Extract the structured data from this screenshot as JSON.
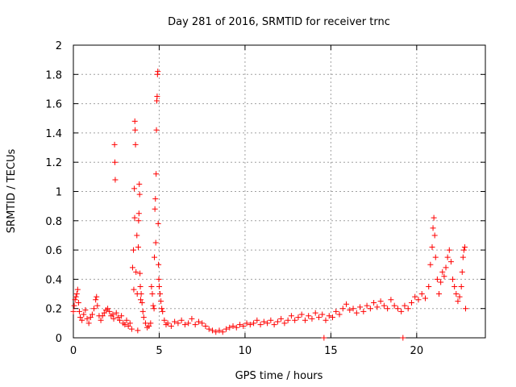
{
  "chart_data": {
    "type": "scatter",
    "title": "Day 281 of 2016, SRMTID for receiver trnc",
    "xlabel": "GPS time / hours",
    "ylabel": "SRMTID / TECUs",
    "xlim": [
      0,
      24
    ],
    "ylim": [
      0,
      2
    ],
    "x_ticks": [
      0,
      5,
      10,
      15,
      20
    ],
    "x_tick_labels": [
      "0",
      "5",
      "10",
      "15",
      "20"
    ],
    "y_ticks": [
      0,
      0.2,
      0.4,
      0.6,
      0.8,
      1,
      1.2,
      1.4,
      1.6,
      1.8,
      2
    ],
    "y_tick_labels": [
      "0",
      "0.2",
      "0.4",
      "0.6",
      "0.8",
      "1",
      "1.2",
      "1.4",
      "1.6",
      "1.8",
      "2"
    ],
    "grid": true,
    "marker": "+",
    "color": "#ff0000",
    "series": [
      {
        "name": "SRMTID",
        "points": [
          [
            0.0,
            0.18
          ],
          [
            0.05,
            0.22
          ],
          [
            0.1,
            0.26
          ],
          [
            0.15,
            0.28
          ],
          [
            0.2,
            0.3
          ],
          [
            0.25,
            0.33
          ],
          [
            0.3,
            0.24
          ],
          [
            0.35,
            0.18
          ],
          [
            0.4,
            0.14
          ],
          [
            0.5,
            0.12
          ],
          [
            0.6,
            0.16
          ],
          [
            0.7,
            0.19
          ],
          [
            0.8,
            0.13
          ],
          [
            0.9,
            0.1
          ],
          [
            1.0,
            0.14
          ],
          [
            1.1,
            0.16
          ],
          [
            1.2,
            0.2
          ],
          [
            1.3,
            0.26
          ],
          [
            1.35,
            0.28
          ],
          [
            1.4,
            0.22
          ],
          [
            1.5,
            0.15
          ],
          [
            1.6,
            0.12
          ],
          [
            1.7,
            0.15
          ],
          [
            1.8,
            0.17
          ],
          [
            1.9,
            0.19
          ],
          [
            2.0,
            0.2
          ],
          [
            2.1,
            0.18
          ],
          [
            2.2,
            0.15
          ],
          [
            2.3,
            0.16
          ],
          [
            2.35,
            0.13
          ],
          [
            2.4,
            1.32
          ],
          [
            2.42,
            1.2
          ],
          [
            2.44,
            1.08
          ],
          [
            2.5,
            0.17
          ],
          [
            2.6,
            0.14
          ],
          [
            2.7,
            0.12
          ],
          [
            2.8,
            0.15
          ],
          [
            2.9,
            0.1
          ],
          [
            3.0,
            0.09
          ],
          [
            3.1,
            0.12
          ],
          [
            3.2,
            0.08
          ],
          [
            3.3,
            0.1
          ],
          [
            3.4,
            0.06
          ],
          [
            3.45,
            0.48
          ],
          [
            3.5,
            0.6
          ],
          [
            3.52,
            0.33
          ],
          [
            3.55,
            1.02
          ],
          [
            3.57,
            0.82
          ],
          [
            3.58,
            1.48
          ],
          [
            3.6,
            1.42
          ],
          [
            3.62,
            1.32
          ],
          [
            3.65,
            0.45
          ],
          [
            3.7,
            0.7
          ],
          [
            3.72,
            0.3
          ],
          [
            3.75,
            0.05
          ],
          [
            3.78,
            0.62
          ],
          [
            3.8,
            0.8
          ],
          [
            3.82,
            0.85
          ],
          [
            3.84,
            1.05
          ],
          [
            3.86,
            0.98
          ],
          [
            3.88,
            0.44
          ],
          [
            3.9,
            0.35
          ],
          [
            3.92,
            0.26
          ],
          [
            3.95,
            0.3
          ],
          [
            4.0,
            0.24
          ],
          [
            4.05,
            0.18
          ],
          [
            4.1,
            0.14
          ],
          [
            4.2,
            0.1
          ],
          [
            4.3,
            0.07
          ],
          [
            4.4,
            0.08
          ],
          [
            4.5,
            0.1
          ],
          [
            4.55,
            0.35
          ],
          [
            4.6,
            0.3
          ],
          [
            4.65,
            0.22
          ],
          [
            4.7,
            0.2
          ],
          [
            4.72,
            0.55
          ],
          [
            4.75,
            0.88
          ],
          [
            4.78,
            0.95
          ],
          [
            4.8,
            0.65
          ],
          [
            4.82,
            1.12
          ],
          [
            4.84,
            1.42
          ],
          [
            4.86,
            1.62
          ],
          [
            4.88,
            1.65
          ],
          [
            4.9,
            1.8
          ],
          [
            4.92,
            1.82
          ],
          [
            4.94,
            0.78
          ],
          [
            4.96,
            0.5
          ],
          [
            4.98,
            0.4
          ],
          [
            5.0,
            0.35
          ],
          [
            5.05,
            0.3
          ],
          [
            5.1,
            0.25
          ],
          [
            5.15,
            0.2
          ],
          [
            5.2,
            0.18
          ],
          [
            5.3,
            0.12
          ],
          [
            5.4,
            0.09
          ],
          [
            5.5,
            0.1
          ],
          [
            5.7,
            0.08
          ],
          [
            5.9,
            0.11
          ],
          [
            6.1,
            0.1
          ],
          [
            6.3,
            0.12
          ],
          [
            6.5,
            0.09
          ],
          [
            6.7,
            0.1
          ],
          [
            6.9,
            0.13
          ],
          [
            7.1,
            0.09
          ],
          [
            7.3,
            0.11
          ],
          [
            7.5,
            0.1
          ],
          [
            7.7,
            0.08
          ],
          [
            7.9,
            0.06
          ],
          [
            8.1,
            0.05
          ],
          [
            8.3,
            0.04
          ],
          [
            8.5,
            0.05
          ],
          [
            8.7,
            0.04
          ],
          [
            8.9,
            0.06
          ],
          [
            9.1,
            0.07
          ],
          [
            9.3,
            0.08
          ],
          [
            9.5,
            0.07
          ],
          [
            9.7,
            0.09
          ],
          [
            9.9,
            0.08
          ],
          [
            10.1,
            0.1
          ],
          [
            10.3,
            0.09
          ],
          [
            10.5,
            0.1
          ],
          [
            10.7,
            0.12
          ],
          [
            10.9,
            0.09
          ],
          [
            11.1,
            0.11
          ],
          [
            11.3,
            0.1
          ],
          [
            11.5,
            0.12
          ],
          [
            11.7,
            0.09
          ],
          [
            11.9,
            0.11
          ],
          [
            12.1,
            0.13
          ],
          [
            12.3,
            0.1
          ],
          [
            12.5,
            0.12
          ],
          [
            12.7,
            0.15
          ],
          [
            12.9,
            0.12
          ],
          [
            13.1,
            0.14
          ],
          [
            13.3,
            0.16
          ],
          [
            13.5,
            0.12
          ],
          [
            13.7,
            0.15
          ],
          [
            13.9,
            0.13
          ],
          [
            14.1,
            0.17
          ],
          [
            14.3,
            0.14
          ],
          [
            14.5,
            0.16
          ],
          [
            14.6,
            0.0
          ],
          [
            14.7,
            0.12
          ],
          [
            14.9,
            0.15
          ],
          [
            15.1,
            0.14
          ],
          [
            15.3,
            0.18
          ],
          [
            15.5,
            0.16
          ],
          [
            15.7,
            0.2
          ],
          [
            15.9,
            0.23
          ],
          [
            16.1,
            0.19
          ],
          [
            16.3,
            0.2
          ],
          [
            16.5,
            0.17
          ],
          [
            16.7,
            0.21
          ],
          [
            16.9,
            0.18
          ],
          [
            17.1,
            0.22
          ],
          [
            17.3,
            0.2
          ],
          [
            17.5,
            0.24
          ],
          [
            17.7,
            0.21
          ],
          [
            17.9,
            0.25
          ],
          [
            18.1,
            0.22
          ],
          [
            18.3,
            0.2
          ],
          [
            18.5,
            0.26
          ],
          [
            18.7,
            0.22
          ],
          [
            18.9,
            0.2
          ],
          [
            19.1,
            0.18
          ],
          [
            19.2,
            0.0
          ],
          [
            19.3,
            0.22
          ],
          [
            19.5,
            0.2
          ],
          [
            19.7,
            0.24
          ],
          [
            19.9,
            0.28
          ],
          [
            20.1,
            0.26
          ],
          [
            20.3,
            0.3
          ],
          [
            20.5,
            0.27
          ],
          [
            20.7,
            0.35
          ],
          [
            20.8,
            0.5
          ],
          [
            20.9,
            0.62
          ],
          [
            20.95,
            0.75
          ],
          [
            21.0,
            0.82
          ],
          [
            21.05,
            0.7
          ],
          [
            21.1,
            0.55
          ],
          [
            21.2,
            0.4
          ],
          [
            21.3,
            0.3
          ],
          [
            21.4,
            0.38
          ],
          [
            21.5,
            0.45
          ],
          [
            21.6,
            0.42
          ],
          [
            21.7,
            0.48
          ],
          [
            21.8,
            0.55
          ],
          [
            21.9,
            0.6
          ],
          [
            22.0,
            0.52
          ],
          [
            22.1,
            0.4
          ],
          [
            22.2,
            0.35
          ],
          [
            22.3,
            0.3
          ],
          [
            22.4,
            0.25
          ],
          [
            22.5,
            0.28
          ],
          [
            22.6,
            0.35
          ],
          [
            22.65,
            0.45
          ],
          [
            22.7,
            0.55
          ],
          [
            22.75,
            0.6
          ],
          [
            22.8,
            0.62
          ],
          [
            22.85,
            0.2
          ]
        ]
      }
    ]
  }
}
